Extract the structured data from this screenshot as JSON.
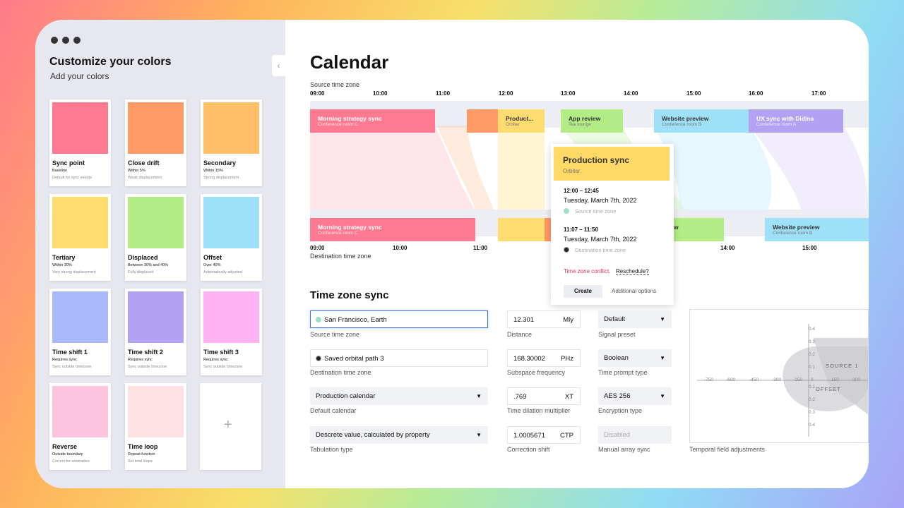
{
  "sidebar": {
    "title": "Customize your colors",
    "subtitle": "Add your colors",
    "collapse_icon": "chevron-left-icon",
    "cards": [
      {
        "name": "Sync point",
        "desc": "Baseline",
        "note": "Default for sync events",
        "color": "#ff7a90"
      },
      {
        "name": "Close drift",
        "desc": "Within 5%",
        "note": "Weak displacement",
        "color": "#ff9966"
      },
      {
        "name": "Secondary",
        "desc": "Within 15%",
        "note": "Strong displacement",
        "color": "#ffbf66"
      },
      {
        "name": "Tertiary",
        "desc": "Within 30%",
        "note": "Very strong displacement",
        "color": "#ffdc70"
      },
      {
        "name": "Displaced",
        "desc": "Between 30% and 40%",
        "note": "Fully displaced",
        "color": "#b3ec84"
      },
      {
        "name": "Offset",
        "desc": "Over 40%",
        "note": "Automatically adjusted",
        "color": "#9de0f7"
      },
      {
        "name": "Time shift 1",
        "desc": "Requires sync",
        "note": "Sync outside timezone",
        "color": "#a9b9fb"
      },
      {
        "name": "Time shift 2",
        "desc": "Requires sync",
        "note": "Sync outside timezone",
        "color": "#b3a2f2"
      },
      {
        "name": "Time shift 3",
        "desc": "Requires sync",
        "note": "Sync outside timezone",
        "color": "#ffb3f3"
      },
      {
        "name": "Reverse",
        "desc": "Outside boundary",
        "note": "Correct for anomalies",
        "color": "#ffc4dd"
      },
      {
        "name": "Time loop",
        "desc": "Repeat function",
        "note": "Set total loops",
        "color": "#ffe1e4"
      }
    ],
    "add_icon": "plus-icon"
  },
  "calendar": {
    "title": "Calendar",
    "source_label": "Source time zone",
    "dest_label": "Destination time zone",
    "source_ticks": [
      "09:00",
      "10:00",
      "11:00",
      "12:00",
      "13:00",
      "14:00",
      "15:00",
      "16:00",
      "17:00"
    ],
    "dest_ticks": [
      "09:00",
      "10:00",
      "11:00",
      "14:00",
      "15:00"
    ],
    "top_events": [
      {
        "title": "Morning strategy sync",
        "sub": "Conference room C",
        "color": "#ff7a90"
      },
      {
        "title": "",
        "sub": "",
        "color": "#ff9966"
      },
      {
        "title": "Product...",
        "sub": "Orbiter",
        "color": "#ffdc70"
      },
      {
        "title": "App review",
        "sub": "Tea lounge",
        "color": "#b3ec84"
      },
      {
        "title": "Website preview",
        "sub": "Conference room B",
        "color": "#9de0f7"
      },
      {
        "title": "UX sync with Didina",
        "sub": "Conference room A",
        "color": "#b3a2f2"
      }
    ],
    "bottom_events": [
      {
        "title": "Morning strategy sync",
        "sub": "Conference room C",
        "color": "#ff7a90"
      },
      {
        "title": "",
        "sub": "",
        "color": "#ffdc70"
      },
      {
        "title": "",
        "sub": "",
        "color": "#ff9966"
      },
      {
        "title": "w",
        "sub": "",
        "color": "#b3ec84"
      },
      {
        "title": "Website preview",
        "sub": "Conference room B",
        "color": "#9de0f7"
      }
    ]
  },
  "popup": {
    "title": "Production sync",
    "subtitle": "Orbiter",
    "time1": "12:00 – 12:45",
    "date1": "Tuesday, March 7th, 2022",
    "zone1": "Source time zone",
    "time2": "11:07 – 11:50",
    "date2": "Tuesday, March 7th, 2022",
    "zone2": "Destination time zone",
    "conflict": "Time zone conflict.",
    "reschedule": "Reschedule?",
    "create": "Create",
    "additional": "Additional options"
  },
  "sync": {
    "title": "Time zone sync",
    "left_fields": [
      {
        "value": "San Francisco, Earth",
        "label": "Source time zone"
      },
      {
        "value": "Saved orbital path 3",
        "label": "Destination time zone"
      },
      {
        "value": "Production calendar",
        "label": "Default calendar"
      },
      {
        "value": "Descrete value, calculated by property",
        "label": "Tabulation type"
      }
    ],
    "mid_fields": [
      {
        "value": "12.301",
        "unit": "Mly",
        "label": "Distance"
      },
      {
        "value": "168.30002",
        "unit": "PHz",
        "label": "Subspace frequency"
      },
      {
        "value": ".769",
        "unit": "XT",
        "label": "Time dilation multiplier"
      },
      {
        "value": "1.0005671",
        "unit": "CTP",
        "label": "Correction shift"
      }
    ],
    "right_fields": [
      {
        "value": "Default",
        "label": "Signal preset"
      },
      {
        "value": "Boolean",
        "label": "Time prompt type"
      },
      {
        "value": "AES 256",
        "label": "Encryption type"
      },
      {
        "value": "Disabled",
        "label": "Manual array sync"
      }
    ],
    "plot": {
      "label": "Temporal field adjustments",
      "x_ticks": [
        "-750",
        "-600",
        "-450",
        "-300",
        "-150",
        "0",
        "150",
        "300"
      ],
      "y_ticks": [
        "0.4",
        "0.3",
        "0.2",
        "0.1",
        "0.1",
        "0.2",
        "0.3",
        "0.4"
      ],
      "source_text": "SOURCE 1",
      "offset_text": "OFFSET"
    }
  }
}
